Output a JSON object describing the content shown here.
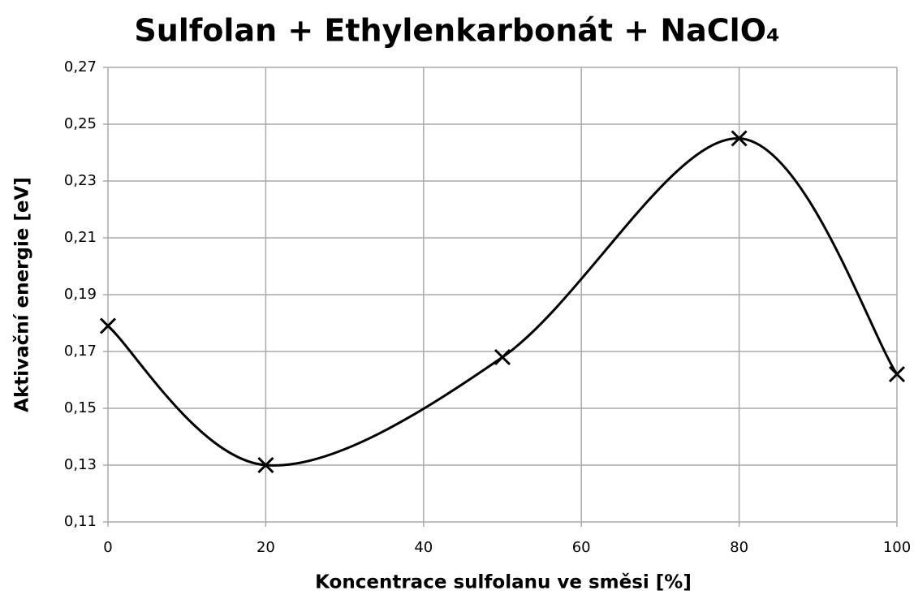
{
  "chart_data": {
    "type": "line",
    "title": "Sulfolan + Ethylenkarbonát + NaClO₄",
    "x_label": "Koncentrace sulfolanu ve směsi [%]",
    "y_label": "Aktivační energie [eV]",
    "x": [
      0,
      20,
      50,
      80,
      100
    ],
    "series": [
      {
        "color": "#000000",
        "values": [
          0.179,
          0.13,
          0.168,
          0.245,
          0.162
        ]
      }
    ],
    "smooth": true,
    "marker": "x",
    "grid": true,
    "xlim": [
      0,
      100
    ],
    "xticks": [
      0,
      20,
      40,
      60,
      80,
      100
    ],
    "ylim": [
      0.11,
      0.27
    ],
    "yticks": [
      {
        "value": 0.11,
        "label": "0,11"
      },
      {
        "value": 0.13,
        "label": "0,13"
      },
      {
        "value": 0.15,
        "label": "0,15"
      },
      {
        "value": 0.17,
        "label": "0,17"
      },
      {
        "value": 0.19,
        "label": "0,19"
      },
      {
        "value": 0.21,
        "label": "0,21"
      },
      {
        "value": 0.23,
        "label": "0,23"
      },
      {
        "value": 0.25,
        "label": "0,25"
      },
      {
        "value": 0.27,
        "label": "0,27"
      }
    ]
  }
}
